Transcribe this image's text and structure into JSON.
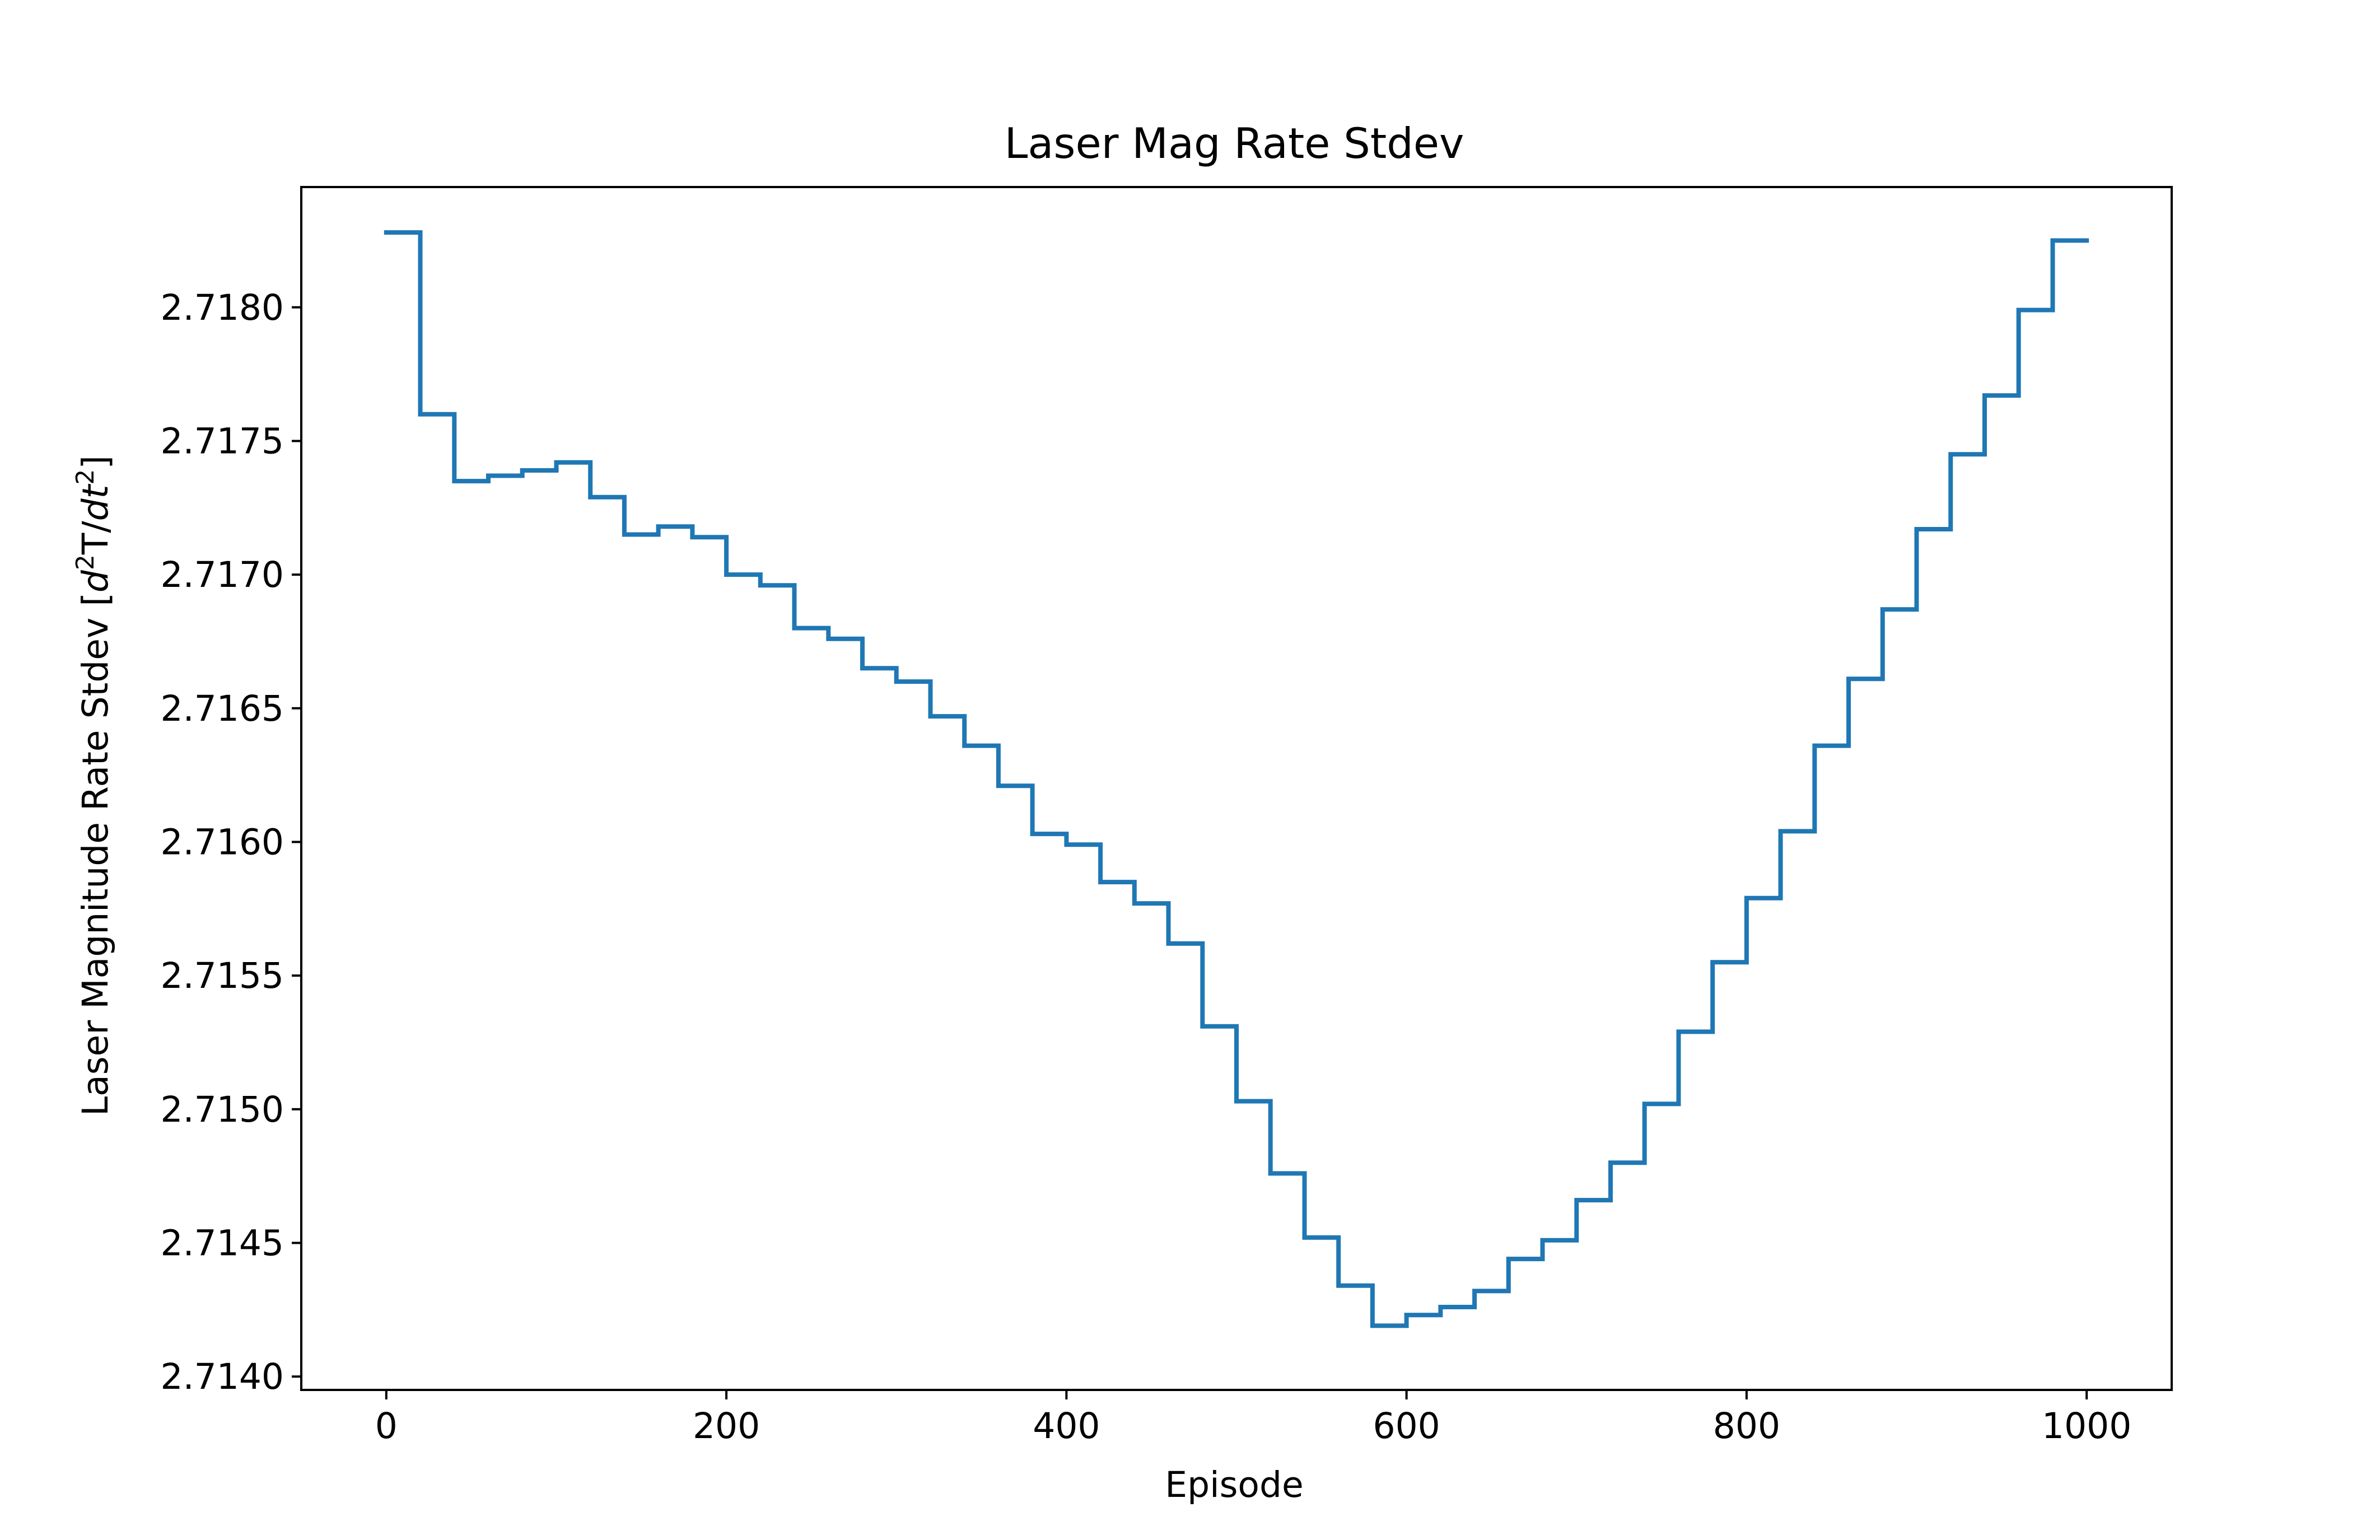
{
  "chart_data": {
    "type": "line",
    "title": "Laser Mag Rate Stdev",
    "xlabel": "Episode",
    "ylabel_parts": {
      "prefix": "Laser Magnitude Rate Stdev [",
      "d1": "d",
      "exp1": "2",
      "mid": "T/",
      "d2": "dt",
      "exp2": "2",
      "suffix": "]"
    },
    "xlim": [
      -50,
      1050
    ],
    "ylim": [
      2.71395,
      2.71845
    ],
    "x_ticks": [
      0,
      200,
      400,
      600,
      800,
      1000
    ],
    "y_ticks": [
      2.714,
      2.7145,
      2.715,
      2.7155,
      2.716,
      2.7165,
      2.717,
      2.7175,
      2.718
    ],
    "x_tick_labels": [
      "0",
      "200",
      "400",
      "600",
      "800",
      "1000"
    ],
    "y_tick_labels": [
      "2.7140",
      "2.7145",
      "2.7150",
      "2.7155",
      "2.7160",
      "2.7165",
      "2.7170",
      "2.7175",
      "2.7180"
    ],
    "line_color": "#1f77b4",
    "grid": false,
    "series": [
      {
        "step": "post",
        "x": [
          0,
          20,
          40,
          60,
          80,
          100,
          120,
          140,
          160,
          180,
          200,
          220,
          240,
          260,
          280,
          300,
          320,
          340,
          360,
          380,
          400,
          420,
          440,
          460,
          480,
          500,
          520,
          540,
          560,
          580,
          600,
          620,
          640,
          660,
          680,
          700,
          720,
          740,
          760,
          780,
          800,
          820,
          840,
          860,
          880,
          900,
          920,
          940,
          960,
          980,
          1000
        ],
        "y": [
          2.71828,
          2.7176,
          2.71735,
          2.71737,
          2.71739,
          2.71742,
          2.71729,
          2.71715,
          2.71718,
          2.71714,
          2.717,
          2.71696,
          2.7168,
          2.71676,
          2.71665,
          2.7166,
          2.71647,
          2.71636,
          2.71621,
          2.71603,
          2.71599,
          2.71585,
          2.71577,
          2.71562,
          2.71531,
          2.71503,
          2.71476,
          2.71452,
          2.71434,
          2.71419,
          2.71423,
          2.71426,
          2.71432,
          2.71444,
          2.71451,
          2.71466,
          2.7148,
          2.71502,
          2.71529,
          2.71555,
          2.71579,
          2.71604,
          2.71636,
          2.71661,
          2.71687,
          2.71717,
          2.71745,
          2.71767,
          2.71799,
          2.71825,
          2.71825
        ]
      }
    ]
  }
}
